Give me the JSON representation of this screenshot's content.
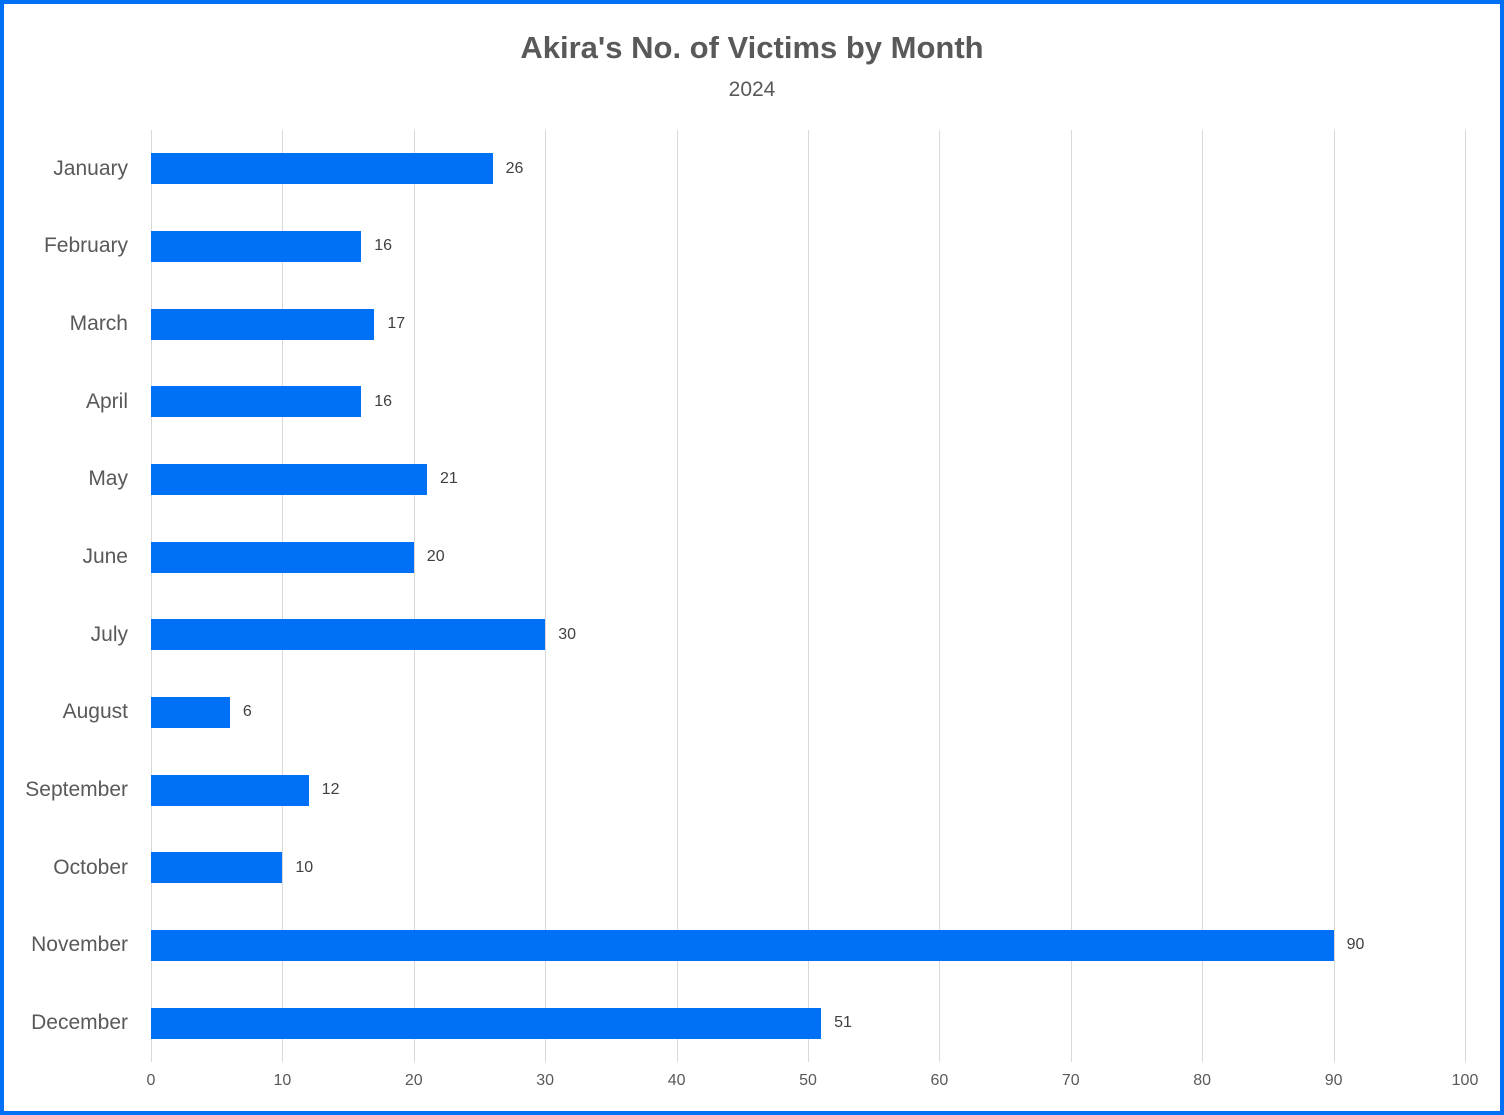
{
  "chart": {
    "title": "Akira's No. of Victims by Month",
    "subtitle": "2024"
  },
  "chart_data": {
    "type": "bar",
    "orientation": "horizontal",
    "title": "Akira's No. of Victims by Month",
    "subtitle": "2024",
    "categories": [
      "January",
      "February",
      "March",
      "April",
      "May",
      "June",
      "July",
      "August",
      "September",
      "October",
      "November",
      "December"
    ],
    "values": [
      26,
      16,
      17,
      16,
      21,
      20,
      30,
      6,
      12,
      10,
      90,
      51
    ],
    "xlabel": "",
    "ylabel": "",
    "xlim": [
      0,
      100
    ],
    "xticks": [
      0,
      10,
      20,
      30,
      40,
      50,
      60,
      70,
      80,
      90,
      100
    ],
    "grid": "vertical-only",
    "legend": "none",
    "value_labels": "outside-end",
    "bar_color": "#0070f7",
    "frame_border_color": "#0070f7",
    "gridline_color": "#d9d9d9",
    "text_color": "#595959",
    "value_label_color": "#404040",
    "background_color": "#ffffff"
  }
}
